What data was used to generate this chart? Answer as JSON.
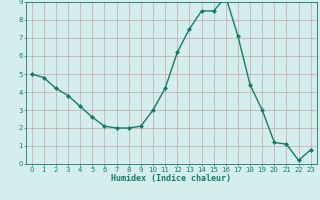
{
  "x": [
    0,
    1,
    2,
    3,
    4,
    5,
    6,
    7,
    8,
    9,
    10,
    11,
    12,
    13,
    14,
    15,
    16,
    17,
    18,
    19,
    20,
    21,
    22,
    23
  ],
  "y": [
    5.0,
    4.8,
    4.2,
    3.8,
    3.2,
    2.6,
    2.1,
    2.0,
    2.0,
    2.1,
    3.0,
    4.2,
    6.2,
    7.5,
    8.5,
    8.5,
    9.3,
    7.1,
    4.4,
    3.0,
    1.2,
    1.1,
    0.2,
    0.8
  ],
  "xlabel": "Humidex (Indice chaleur)",
  "xlim_min": -0.5,
  "xlim_max": 23.5,
  "ylim_min": 0,
  "ylim_max": 9,
  "yticks": [
    0,
    1,
    2,
    3,
    4,
    5,
    6,
    7,
    8,
    9
  ],
  "xticks": [
    0,
    1,
    2,
    3,
    4,
    5,
    6,
    7,
    8,
    9,
    10,
    11,
    12,
    13,
    14,
    15,
    16,
    17,
    18,
    19,
    20,
    21,
    22,
    23
  ],
  "line_color": "#1a7a6a",
  "marker_color": "#1a7a6a",
  "bg_color": "#d4eded",
  "grid_color": "#c8a8a8",
  "label_color": "#1a7a6a",
  "tick_color": "#1a7a6a",
  "spine_color": "#1a7a6a"
}
